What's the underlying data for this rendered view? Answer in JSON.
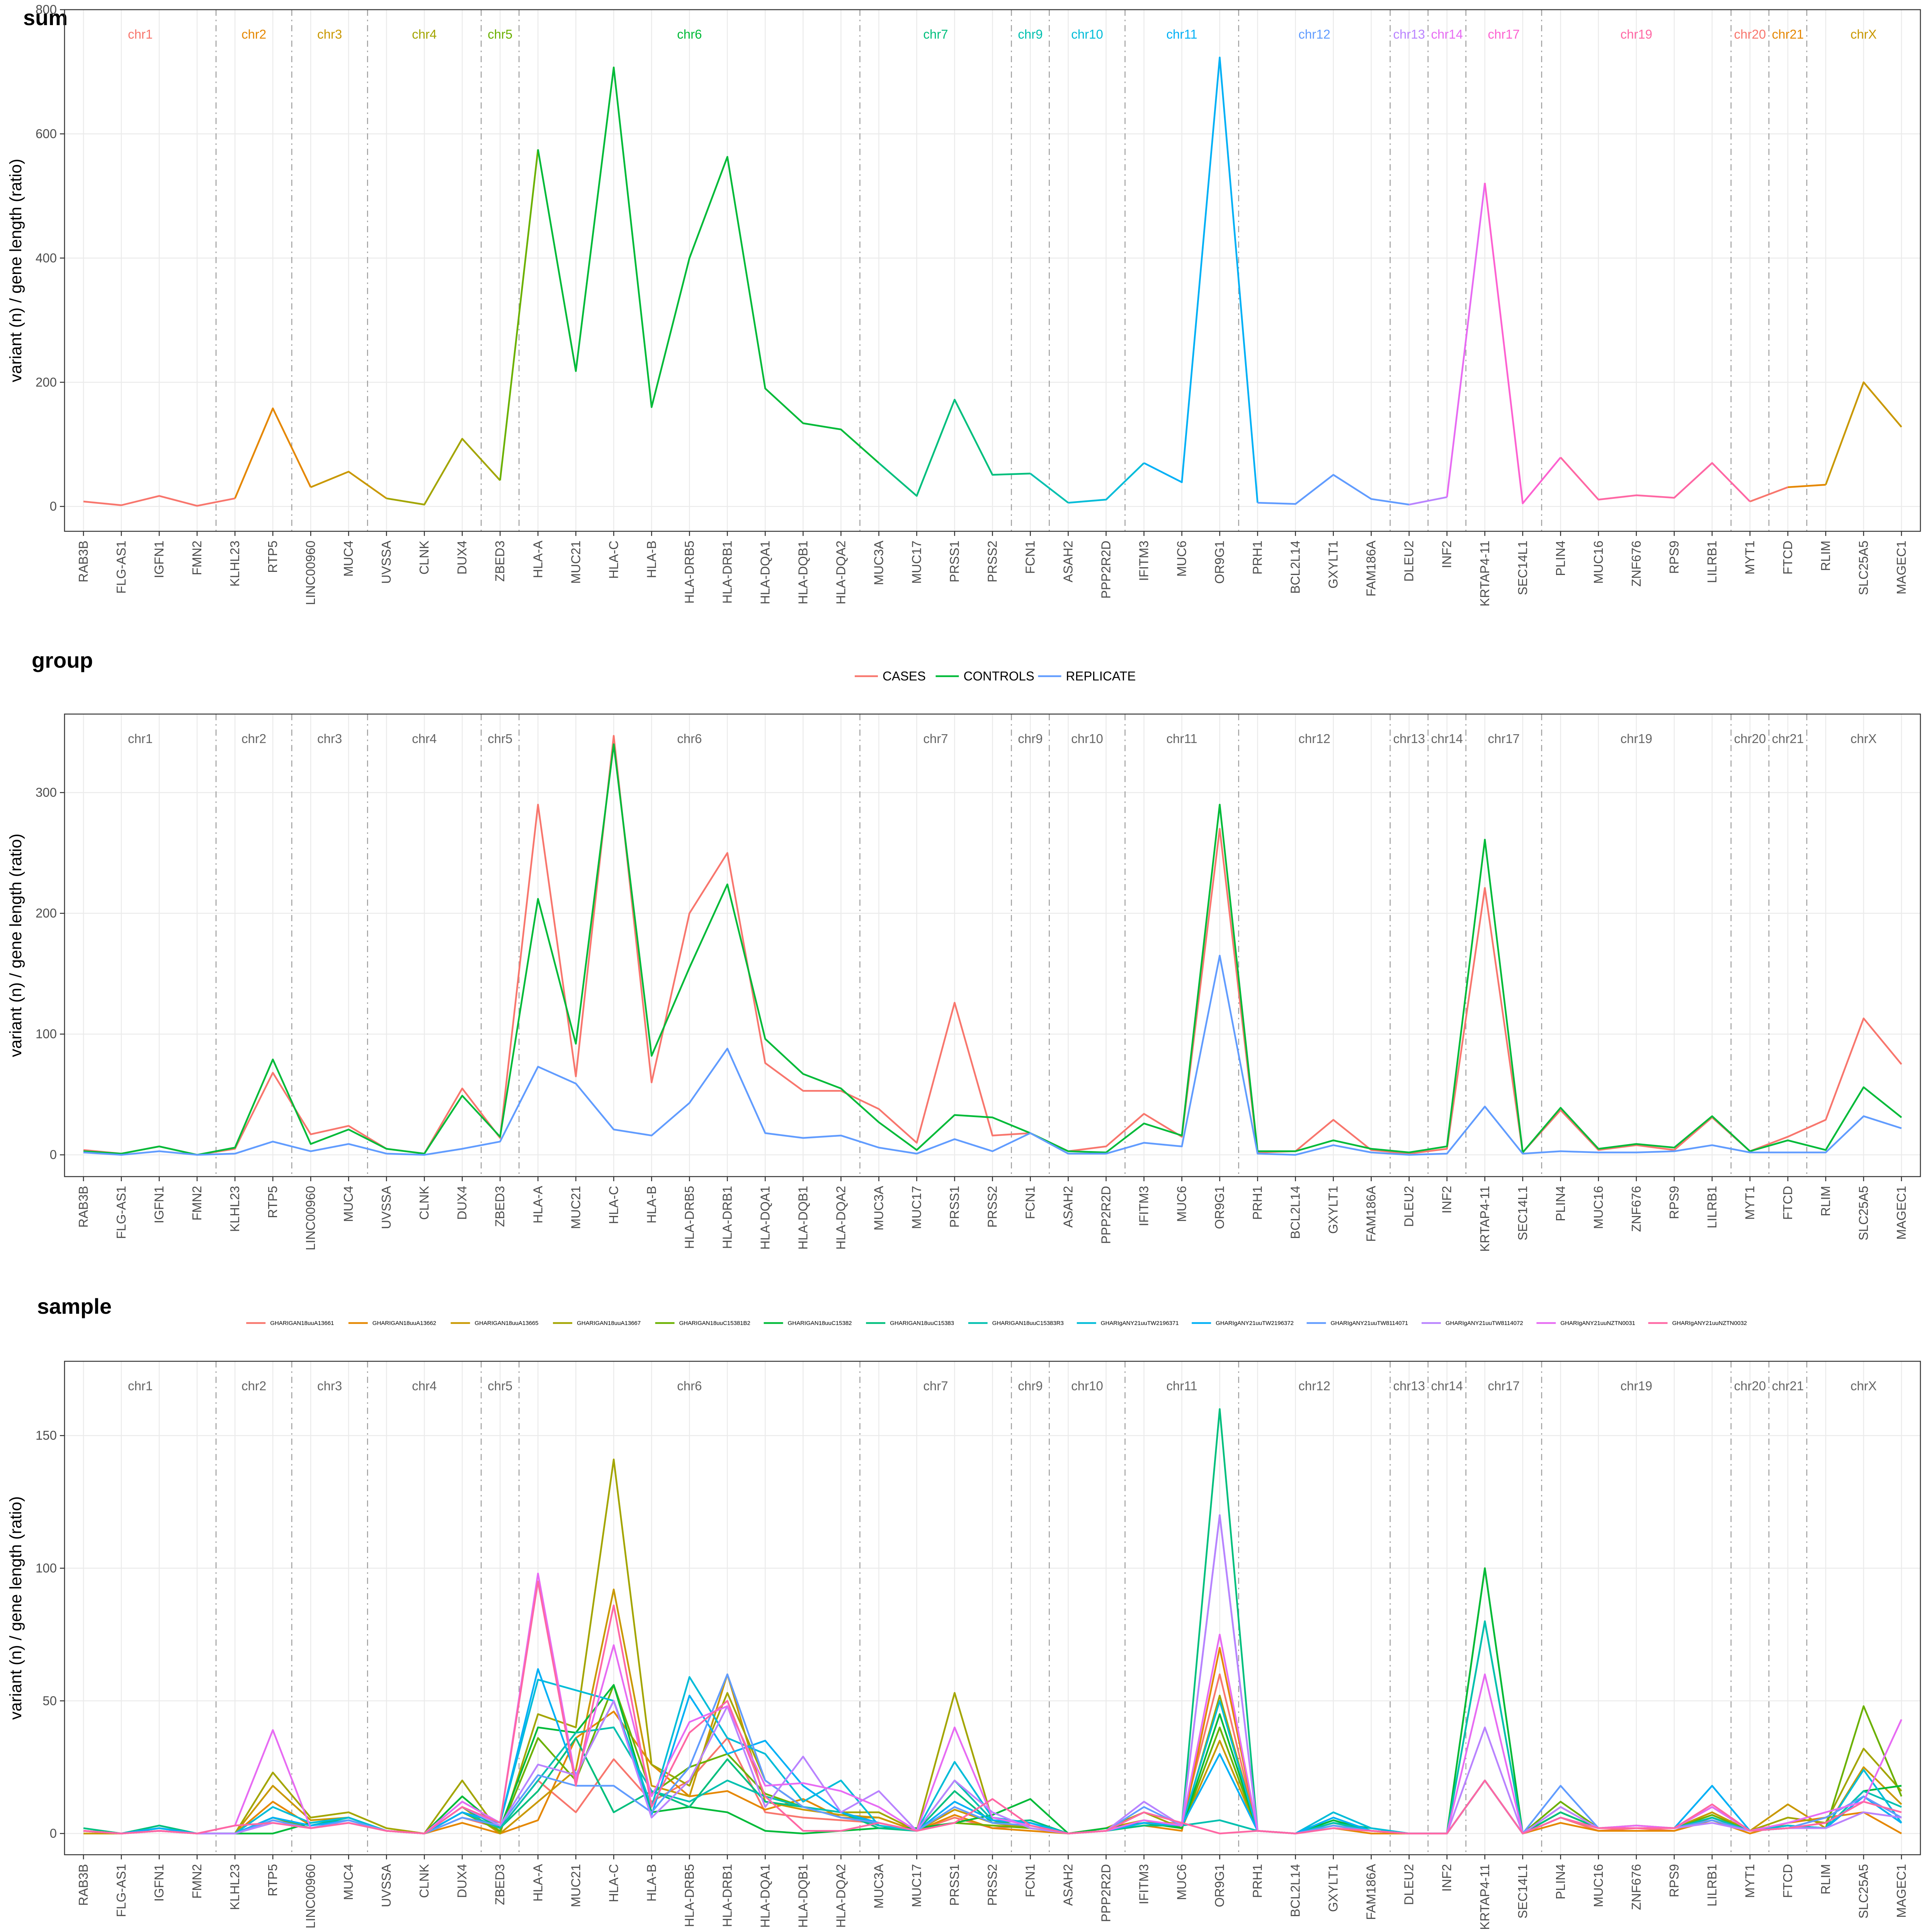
{
  "genes": [
    "RAB3B",
    "FLG-AS1",
    "IGFN1",
    "FMN2",
    "KLHL23",
    "RTP5",
    "LINC00960",
    "MUC4",
    "UVSSA",
    "CLNK",
    "DUX4",
    "ZBED3",
    "HLA-A",
    "MUC21",
    "HLA-C",
    "HLA-B",
    "HLA-DRB5",
    "HLA-DRB1",
    "HLA-DQA1",
    "HLA-DQB1",
    "HLA-DQA2",
    "MUC3A",
    "MUC17",
    "PRSS1",
    "PRSS2",
    "FCN1",
    "ASAH2",
    "PPP2R2D",
    "IFITM3",
    "MUC6",
    "OR9G1",
    "PRH1",
    "BCL2L14",
    "GXYLT1",
    "FAM186A",
    "DLEU2",
    "INF2",
    "KRTAP4-11",
    "SEC14L1",
    "PLIN4",
    "MUC16",
    "ZNF676",
    "RPS9",
    "LILRB1",
    "MYT1",
    "FTCD",
    "RLIM",
    "SLC25A5",
    "MAGEC1"
  ],
  "chromosomes": [
    {
      "name": "chr1",
      "start": 0,
      "end": 3,
      "color": "#F8766D"
    },
    {
      "name": "chr2",
      "start": 4,
      "end": 5,
      "color": "#E58700"
    },
    {
      "name": "chr3",
      "start": 6,
      "end": 7,
      "color": "#C99800"
    },
    {
      "name": "chr4",
      "start": 8,
      "end": 10,
      "color": "#A3A500"
    },
    {
      "name": "chr5",
      "start": 11,
      "end": 11,
      "color": "#6BB100"
    },
    {
      "name": "chr6",
      "start": 12,
      "end": 20,
      "color": "#00BA38"
    },
    {
      "name": "chr7",
      "start": 21,
      "end": 24,
      "color": "#00BF7D"
    },
    {
      "name": "chr9",
      "start": 25,
      "end": 25,
      "color": "#00C0AF"
    },
    {
      "name": "chr10",
      "start": 26,
      "end": 27,
      "color": "#00BCD8"
    },
    {
      "name": "chr11",
      "start": 28,
      "end": 30,
      "color": "#00B0F6"
    },
    {
      "name": "chr12",
      "start": 31,
      "end": 34,
      "color": "#619CFF"
    },
    {
      "name": "chr13",
      "start": 35,
      "end": 35,
      "color": "#B983FF"
    },
    {
      "name": "chr14",
      "start": 36,
      "end": 36,
      "color": "#E76BF3"
    },
    {
      "name": "chr17",
      "start": 37,
      "end": 38,
      "color": "#FD61D1"
    },
    {
      "name": "chr19",
      "start": 39,
      "end": 43,
      "color": "#FF67A4"
    },
    {
      "name": "chr20",
      "start": 44,
      "end": 44,
      "color": "#F8766D"
    },
    {
      "name": "chr21",
      "start": 45,
      "end": 45,
      "color": "#E58700"
    },
    {
      "name": "chrX",
      "start": 46,
      "end": 48,
      "color": "#C99800"
    }
  ],
  "chart_data": [
    {
      "type": "line",
      "title": "sum",
      "ylabel": "variant (n) / gene length (ratio)",
      "ylim": [
        -40,
        800
      ],
      "yticks": [
        0,
        200,
        400,
        600,
        800
      ],
      "chromosome_label_colors": true,
      "series": [
        {
          "values": [
            8,
            2,
            17,
            1,
            13,
            158,
            31,
            56,
            13,
            3,
            109,
            42,
            575,
            218,
            707,
            160,
            400,
            563,
            190,
            134,
            124,
            70,
            17,
            172,
            51,
            53,
            6,
            11,
            70,
            39,
            723,
            6,
            4,
            51,
            12,
            3,
            15,
            521,
            5,
            79,
            11,
            18,
            14,
            70,
            8,
            31,
            35,
            200,
            128
          ],
          "color": "multi"
        }
      ]
    },
    {
      "type": "line",
      "title": "group",
      "ylabel": "variant (n) / gene length (ratio)",
      "ylim": [
        -18,
        365
      ],
      "yticks": [
        0,
        100,
        200,
        300
      ],
      "legend_position": "top",
      "series": [
        {
          "name": "CASES",
          "color": "#F8766D",
          "values": [
            4,
            1,
            7,
            0,
            5,
            68,
            17,
            24,
            5,
            1,
            55,
            14,
            290,
            65,
            347,
            60,
            200,
            250,
            76,
            53,
            53,
            38,
            10,
            126,
            16,
            18,
            3,
            7,
            34,
            15,
            270,
            2,
            3,
            29,
            4,
            1,
            5,
            221,
            2,
            37,
            4,
            8,
            4,
            31,
            3,
            15,
            29,
            113,
            75
          ]
        },
        {
          "name": "CONTROLS",
          "color": "#00BA38",
          "values": [
            3,
            1,
            7,
            0,
            6,
            79,
            9,
            21,
            5,
            1,
            49,
            15,
            212,
            92,
            340,
            82,
            155,
            224,
            96,
            67,
            55,
            27,
            4,
            33,
            31,
            18,
            3,
            2,
            26,
            16,
            290,
            3,
            3,
            12,
            5,
            2,
            7,
            261,
            2,
            39,
            5,
            9,
            6,
            32,
            3,
            12,
            4,
            56,
            31
          ]
        },
        {
          "name": "REPLICATE",
          "color": "#619CFF",
          "values": [
            2,
            0,
            3,
            0,
            1,
            11,
            3,
            9,
            1,
            0,
            5,
            11,
            73,
            59,
            21,
            16,
            43,
            88,
            18,
            14,
            16,
            6,
            1,
            13,
            3,
            18,
            1,
            1,
            10,
            7,
            165,
            1,
            0,
            8,
            2,
            0,
            1,
            40,
            1,
            3,
            2,
            2,
            3,
            8,
            2,
            2,
            2,
            32,
            22
          ]
        }
      ]
    },
    {
      "type": "line",
      "title": "sample",
      "ylabel": "variant (n) / gene length (ratio)",
      "ylim": [
        -8,
        178
      ],
      "yticks": [
        0,
        50,
        100,
        150
      ],
      "legend_position": "top",
      "series": [
        {
          "name": "GHARIGAN18uuA13661",
          "color": "#F8766D",
          "values": [
            1,
            0,
            1,
            0,
            0,
            5,
            2,
            4,
            1,
            0,
            6,
            2,
            20,
            8,
            28,
            12,
            20,
            36,
            8,
            6,
            5,
            4,
            1,
            6,
            2,
            3,
            0,
            1,
            4,
            4,
            60,
            1,
            0,
            2,
            1,
            0,
            0,
            20,
            0,
            6,
            1,
            2,
            1,
            6,
            1,
            3,
            2,
            8,
            6
          ]
        },
        {
          "name": "GHARIGAN18uuA13662",
          "color": "#E58700",
          "values": [
            1,
            0,
            1,
            0,
            0,
            12,
            3,
            5,
            1,
            0,
            4,
            0,
            5,
            36,
            46,
            26,
            14,
            16,
            9,
            13,
            6,
            6,
            1,
            7,
            2,
            1,
            0,
            1,
            3,
            1,
            70,
            1,
            0,
            2,
            0,
            0,
            0,
            20,
            0,
            4,
            1,
            1,
            1,
            5,
            0,
            4,
            6,
            8,
            0
          ]
        },
        {
          "name": "GHARIGAN18uuA13665",
          "color": "#C99800",
          "values": [
            0,
            0,
            1,
            0,
            0,
            18,
            5,
            6,
            1,
            0,
            10,
            0,
            12,
            24,
            92,
            18,
            14,
            60,
            12,
            9,
            7,
            6,
            1,
            9,
            4,
            2,
            0,
            2,
            5,
            2,
            35,
            1,
            0,
            3,
            1,
            0,
            0,
            20,
            0,
            8,
            2,
            2,
            2,
            8,
            1,
            11,
            2,
            25,
            11
          ]
        },
        {
          "name": "GHARIGAN18uuA13667",
          "color": "#A3A500",
          "values": [
            1,
            0,
            1,
            0,
            0,
            23,
            6,
            8,
            2,
            0,
            20,
            0,
            45,
            40,
            141,
            26,
            18,
            53,
            20,
            10,
            8,
            8,
            1,
            53,
            5,
            2,
            0,
            2,
            8,
            2,
            52,
            1,
            0,
            4,
            1,
            0,
            0,
            20,
            0,
            10,
            2,
            3,
            2,
            6,
            1,
            6,
            4,
            32,
            16
          ]
        },
        {
          "name": "GHARIGAN18uuC15381B2",
          "color": "#6BB100",
          "values": [
            1,
            0,
            2,
            0,
            0,
            6,
            2,
            4,
            1,
            0,
            8,
            1,
            36,
            20,
            56,
            15,
            25,
            30,
            15,
            10,
            8,
            4,
            1,
            4,
            3,
            2,
            0,
            1,
            4,
            2,
            40,
            1,
            0,
            3,
            1,
            0,
            0,
            100,
            0,
            12,
            2,
            2,
            2,
            7,
            1,
            3,
            2,
            48,
            14
          ]
        },
        {
          "name": "GHARIGAN18uuC15382",
          "color": "#00BA38",
          "values": [
            1,
            0,
            2,
            0,
            0,
            0,
            4,
            6,
            1,
            0,
            14,
            2,
            40,
            38,
            56,
            8,
            10,
            8,
            1,
            0,
            1,
            2,
            2,
            4,
            7,
            13,
            0,
            2,
            4,
            2,
            45,
            1,
            0,
            5,
            1,
            0,
            0,
            100,
            0,
            8,
            2,
            2,
            2,
            6,
            1,
            2,
            2,
            16,
            18
          ]
        },
        {
          "name": "GHARIGAN18uuC15383",
          "color": "#00BF7D",
          "values": [
            2,
            0,
            3,
            0,
            0,
            6,
            3,
            6,
            1,
            0,
            10,
            2,
            16,
            36,
            8,
            16,
            10,
            28,
            12,
            10,
            8,
            2,
            1,
            16,
            4,
            5,
            0,
            1,
            3,
            3,
            160,
            1,
            0,
            4,
            2,
            0,
            0,
            80,
            0,
            8,
            2,
            2,
            2,
            6,
            1,
            2,
            2,
            14,
            4
          ]
        },
        {
          "name": "GHARIGAN18uuC15383R3",
          "color": "#00C0AF",
          "values": [
            1,
            0,
            2,
            0,
            0,
            6,
            3,
            5,
            1,
            0,
            8,
            2,
            20,
            38,
            40,
            16,
            12,
            20,
            14,
            10,
            8,
            3,
            1,
            20,
            5,
            4,
            0,
            1,
            4,
            3,
            5,
            1,
            0,
            4,
            1,
            0,
            0,
            80,
            0,
            6,
            2,
            2,
            2,
            6,
            1,
            2,
            2,
            16,
            10
          ]
        },
        {
          "name": "GHARIgANY21uuTW2196371",
          "color": "#00BCD8",
          "values": [
            1,
            0,
            2,
            0,
            0,
            10,
            4,
            6,
            1,
            0,
            12,
            4,
            58,
            54,
            50,
            10,
            59,
            36,
            30,
            12,
            20,
            3,
            1,
            27,
            6,
            4,
            0,
            1,
            4,
            3,
            50,
            1,
            0,
            8,
            2,
            0,
            0,
            20,
            0,
            6,
            2,
            2,
            2,
            10,
            1,
            3,
            2,
            24,
            4
          ]
        },
        {
          "name": "GHARIgANY21uuTW2196372",
          "color": "#00B0F6",
          "values": [
            1,
            0,
            2,
            0,
            0,
            6,
            3,
            5,
            1,
            0,
            8,
            4,
            62,
            22,
            50,
            7,
            52,
            30,
            35,
            18,
            8,
            4,
            1,
            12,
            5,
            4,
            0,
            1,
            4,
            3,
            30,
            1,
            0,
            6,
            1,
            0,
            0,
            20,
            0,
            6,
            2,
            2,
            2,
            18,
            1,
            2,
            2,
            14,
            4
          ]
        },
        {
          "name": "GHARIgANY21uuTW8114071",
          "color": "#619CFF",
          "values": [
            1,
            0,
            1,
            0,
            0,
            5,
            2,
            5,
            1,
            0,
            6,
            3,
            22,
            18,
            18,
            8,
            25,
            60,
            20,
            10,
            6,
            4,
            1,
            10,
            4,
            3,
            0,
            1,
            10,
            3,
            120,
            1,
            0,
            3,
            1,
            0,
            0,
            20,
            0,
            18,
            2,
            2,
            2,
            5,
            1,
            2,
            6,
            14,
            6
          ]
        },
        {
          "name": "GHARIgANY21uuTW8114072",
          "color": "#B983FF",
          "values": [
            1,
            0,
            1,
            0,
            0,
            4,
            2,
            4,
            1,
            0,
            10,
            3,
            26,
            22,
            50,
            6,
            20,
            48,
            10,
            29,
            8,
            16,
            1,
            20,
            8,
            2,
            0,
            1,
            12,
            3,
            120,
            1,
            0,
            2,
            1,
            0,
            0,
            40,
            0,
            10,
            2,
            2,
            2,
            4,
            1,
            2,
            2,
            8,
            6
          ]
        },
        {
          "name": "GHARIgANY21uuNZTN0031",
          "color": "#E76BF3",
          "values": [
            1,
            0,
            1,
            0,
            3,
            39,
            2,
            4,
            1,
            0,
            12,
            4,
            98,
            20,
            71,
            14,
            42,
            48,
            18,
            19,
            16,
            10,
            1,
            40,
            6,
            3,
            0,
            1,
            5,
            3,
            75,
            1,
            0,
            2,
            1,
            0,
            0,
            60,
            0,
            6,
            2,
            3,
            2,
            10,
            1,
            4,
            8,
            12,
            43
          ]
        },
        {
          "name": "GHARIgANY21uuNZTN0032",
          "color": "#FF67A4",
          "values": [
            1,
            0,
            1,
            0,
            3,
            4,
            2,
            4,
            1,
            0,
            10,
            4,
            95,
            18,
            86,
            10,
            38,
            50,
            14,
            1,
            1,
            4,
            1,
            4,
            13,
            3,
            0,
            1,
            8,
            4,
            0,
            1,
            0,
            2,
            1,
            0,
            0,
            20,
            0,
            6,
            2,
            2,
            2,
            11,
            1,
            2,
            4,
            12,
            8
          ]
        }
      ]
    }
  ]
}
